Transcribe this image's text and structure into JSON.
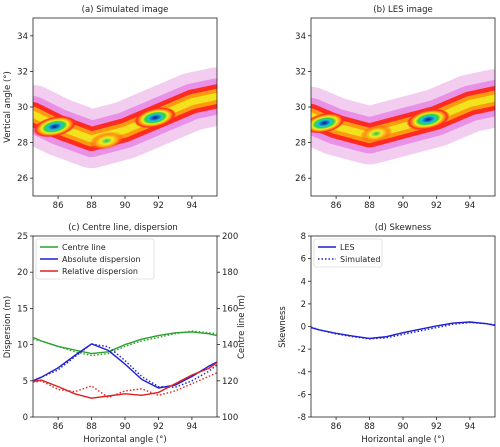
{
  "chart_data": [
    {
      "type": "heatmap",
      "title": "(a) Simulated image",
      "xlabel": "",
      "ylabel": "Vertical angle (°)",
      "xlim": [
        84.5,
        95.5
      ],
      "ylim": [
        25,
        35
      ],
      "xticks": [
        86,
        88,
        90,
        92,
        94
      ],
      "yticks": [
        26,
        28,
        30,
        32,
        34
      ],
      "plume_centre": {
        "x": [
          84.5,
          86,
          88,
          90,
          92,
          94,
          95.5
        ],
        "y": [
          29.6,
          28.9,
          28.2,
          28.7,
          29.5,
          30.3,
          30.6
        ]
      },
      "hotspots": [
        {
          "x": 85.8,
          "y": 28.9,
          "level": 1.0
        },
        {
          "x": 91.8,
          "y": 29.4,
          "level": 0.95
        },
        {
          "x": 88.9,
          "y": 28.1,
          "level": 0.55
        }
      ]
    },
    {
      "type": "heatmap",
      "title": "(b) LES image",
      "xlabel": "",
      "ylabel": "",
      "xlim": [
        84.5,
        95.5
      ],
      "ylim": [
        25,
        35
      ],
      "xticks": [
        86,
        88,
        90,
        92,
        94
      ],
      "yticks": [
        26,
        28,
        30,
        32,
        34
      ],
      "plume_centre": {
        "x": [
          84.5,
          86,
          88,
          90,
          92,
          94,
          95.5
        ],
        "y": [
          29.5,
          28.9,
          28.4,
          28.9,
          29.4,
          30.2,
          30.5
        ]
      },
      "hotspots": [
        {
          "x": 85.3,
          "y": 29.1,
          "level": 0.9
        },
        {
          "x": 91.5,
          "y": 29.3,
          "level": 1.0
        },
        {
          "x": 88.4,
          "y": 28.5,
          "level": 0.45
        }
      ]
    },
    {
      "type": "line",
      "title": "(c) Centre line, dispersion",
      "xlabel": "Horizontal angle (°)",
      "ylabel": "Dispersion (m)",
      "y2label": "Centre line (m)",
      "xlim": [
        84.5,
        95.5
      ],
      "ylim": [
        0,
        25
      ],
      "y2lim": [
        100,
        200
      ],
      "xticks": [
        86,
        88,
        90,
        92,
        94
      ],
      "yticks": [
        0,
        5,
        10,
        15,
        20,
        25
      ],
      "y2ticks": [
        100,
        120,
        140,
        160,
        180,
        200
      ],
      "x": [
        84.5,
        85,
        86,
        87,
        88,
        89,
        90,
        91,
        92,
        93,
        94,
        95,
        95.5
      ],
      "series": [
        {
          "name": "Centre line",
          "color": "#2ca02c",
          "axis": "right",
          "style": "solid",
          "values": [
            144,
            142,
            139,
            137,
            135,
            136,
            140,
            143,
            145,
            146.5,
            147,
            146,
            145
          ]
        },
        {
          "name": "Centre line",
          "color": "#2ca02c",
          "axis": "right",
          "style": "dotted",
          "values": [
            143,
            142,
            139,
            136,
            134,
            135,
            139,
            142,
            144,
            146,
            147.5,
            146.5,
            146
          ]
        },
        {
          "name": "Absolute dispersion",
          "color": "#1f1fd1",
          "axis": "left",
          "style": "solid",
          "values": [
            5,
            5.5,
            6.8,
            8.5,
            10.1,
            9.2,
            7.3,
            5.2,
            4.0,
            4.4,
            5.6,
            7.0,
            7.6
          ]
        },
        {
          "name": "Absolute dispersion",
          "color": "#1f1fd1",
          "axis": "left",
          "style": "dotted",
          "values": [
            5,
            5.5,
            6.5,
            8.3,
            10.1,
            9.7,
            7.8,
            5.6,
            4.2,
            4.1,
            5.0,
            6.3,
            7.2
          ]
        },
        {
          "name": "Relative dispersion",
          "color": "#e02020",
          "axis": "left",
          "style": "solid",
          "values": [
            4.9,
            5.1,
            4.2,
            3.2,
            2.6,
            2.9,
            3.2,
            3.0,
            3.4,
            4.6,
            5.8,
            6.7,
            7.5
          ]
        },
        {
          "name": "Relative dispersion",
          "color": "#e02020",
          "axis": "left",
          "style": "dotted",
          "values": [
            4.8,
            5.0,
            3.8,
            3.5,
            4.3,
            2.7,
            3.6,
            3.9,
            3.0,
            3.6,
            4.6,
            5.6,
            6.1
          ]
        }
      ],
      "legend": [
        "Centre line",
        "Absolute dispersion",
        "Relative dispersion"
      ],
      "legend_position": "top-left"
    },
    {
      "type": "line",
      "title": "(d) Skewness",
      "xlabel": "Horizontal angle (°)",
      "ylabel": "Skewness",
      "xlim": [
        84.5,
        95.5
      ],
      "ylim": [
        -8,
        8
      ],
      "xticks": [
        86,
        88,
        90,
        92,
        94
      ],
      "yticks": [
        -8,
        -6,
        -4,
        -2,
        0,
        2,
        4,
        6,
        8
      ],
      "x": [
        84.5,
        85,
        86,
        87,
        88,
        89,
        90,
        91,
        92,
        93,
        94,
        95,
        95.5
      ],
      "series": [
        {
          "name": "LES",
          "color": "#1f1fd1",
          "style": "solid",
          "values": [
            -0.1,
            -0.3,
            -0.6,
            -0.85,
            -1.05,
            -0.9,
            -0.55,
            -0.25,
            0.05,
            0.3,
            0.4,
            0.25,
            0.1
          ]
        },
        {
          "name": "Simulated",
          "color": "#1f1fd1",
          "style": "dotted",
          "values": [
            -0.05,
            -0.3,
            -0.65,
            -0.9,
            -1.1,
            -1.0,
            -0.7,
            -0.4,
            -0.1,
            0.2,
            0.35,
            0.25,
            0.15
          ]
        }
      ],
      "legend": [
        "LES",
        "Simulated"
      ],
      "legend_position": "top-left"
    }
  ]
}
